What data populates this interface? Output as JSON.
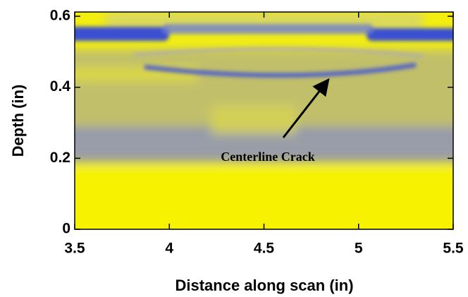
{
  "chart_data": {
    "type": "image",
    "xlabel": "Distance along scan (in)",
    "ylabel": "Depth (in)",
    "annotation": "Centerline Crack",
    "xlim": [
      3.5,
      5.5
    ],
    "xticks": [
      3.5,
      4,
      4.5,
      5,
      5.5
    ],
    "ylim": [
      0,
      0.612
    ],
    "yticks": [
      0,
      0.2,
      0.4,
      0.6
    ]
  }
}
